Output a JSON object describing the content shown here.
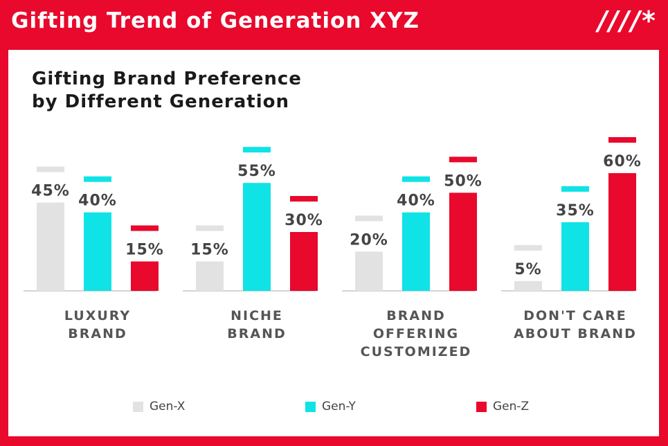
{
  "header": {
    "title": "Gifting Trend of Generation XYZ",
    "mark": "////*"
  },
  "chart_data": {
    "type": "bar",
    "title_lines": [
      "Gifting Brand Preference",
      "by Different Generation"
    ],
    "categories": [
      [
        "LUXURY",
        "BRAND"
      ],
      [
        "NICHE",
        "BRAND"
      ],
      [
        "BRAND",
        "OFFERING",
        "CUSTOMIZED"
      ],
      [
        "DON'T CARE",
        "ABOUT BRAND"
      ]
    ],
    "series": [
      {
        "name": "Gen-X",
        "color": "#e2e2e2",
        "values": [
          45,
          15,
          20,
          5
        ]
      },
      {
        "name": "Gen-Y",
        "color": "#0fe3e6",
        "values": [
          40,
          55,
          40,
          35
        ]
      },
      {
        "name": "Gen-Z",
        "color": "#e8092c",
        "values": [
          15,
          30,
          50,
          60
        ]
      }
    ],
    "value_suffix": "%",
    "ylim": [
      0,
      60
    ],
    "legend_position": "bottom"
  }
}
